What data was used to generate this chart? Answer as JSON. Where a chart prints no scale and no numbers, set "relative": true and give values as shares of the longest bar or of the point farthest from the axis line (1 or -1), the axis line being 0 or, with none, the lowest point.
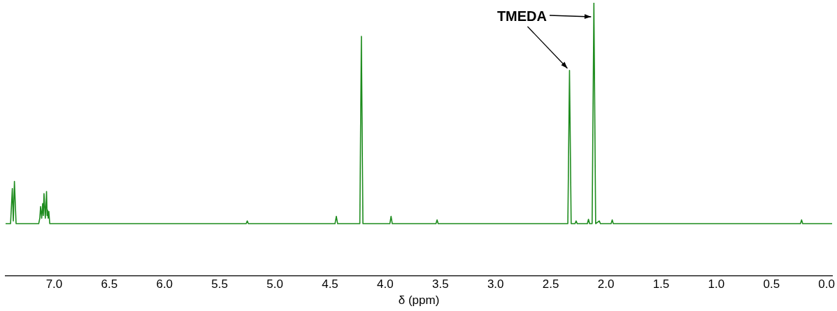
{
  "chart_data": {
    "type": "line",
    "relative": true,
    "xlabel": "δ (ppm)",
    "x": [
      7.44,
      7.395,
      7.379,
      7.37,
      7.36,
      7.345,
      7.14,
      7.13,
      7.123,
      7.113,
      7.104,
      7.098,
      7.092,
      7.08,
      7.069,
      7.064,
      7.06,
      7.054,
      7.048,
      7.04,
      5.26,
      5.25,
      5.24,
      4.455,
      4.443,
      4.431,
      4.23,
      4.216,
      4.202,
      3.958,
      3.947,
      3.936,
      3.54,
      3.53,
      3.52,
      2.345,
      2.33,
      2.315,
      2.28,
      2.27,
      2.26,
      2.168,
      2.158,
      2.148,
      2.125,
      2.109,
      2.093,
      2.06,
      2.05,
      1.953,
      1.943,
      1.933,
      0.237,
      0.227,
      0.217,
      -0.05
    ],
    "series": [
      {
        "color": "#1e8c1e",
        "values": [
          0.19,
          0.19,
          0.319,
          0.2,
          0.345,
          0.19,
          0.19,
          0.21,
          0.253,
          0.21,
          0.264,
          0.22,
          0.3,
          0.21,
          0.308,
          0.22,
          0.24,
          0.21,
          0.235,
          0.19,
          0.19,
          0.2,
          0.19,
          0.19,
          0.217,
          0.19,
          0.19,
          0.877,
          0.19,
          0.19,
          0.217,
          0.19,
          0.19,
          0.204,
          0.19,
          0.19,
          0.752,
          0.19,
          0.19,
          0.2,
          0.19,
          0.19,
          0.206,
          0.19,
          0.19,
          1,
          0.19,
          0.2,
          0.19,
          0.19,
          0.204,
          0.19,
          0.19,
          0.204,
          0.19,
          0.19
        ]
      }
    ],
    "xlim": [
      7.44,
      -0.05
    ],
    "xticks": [
      {
        "value": 7,
        "label": "7.0"
      },
      {
        "value": 6.5,
        "label": "6.5"
      },
      {
        "value": 6,
        "label": "6.0"
      },
      {
        "value": 5.5,
        "label": "5.5"
      },
      {
        "value": 5,
        "label": "5.0"
      },
      {
        "value": 4.5,
        "label": "4.5"
      },
      {
        "value": 4,
        "label": "4.0"
      },
      {
        "value": 3.5,
        "label": "3.5"
      },
      {
        "value": 3,
        "label": "3.0"
      },
      {
        "value": 2.5,
        "label": "2.5"
      },
      {
        "value": 2,
        "label": "2.0"
      },
      {
        "value": 1.5,
        "label": "1.5"
      },
      {
        "value": 1,
        "label": "1.0"
      },
      {
        "value": 0.5,
        "label": "0.5"
      },
      {
        "value": 0,
        "label": "0.0"
      }
    ],
    "annotations": [
      {
        "text": "TMEDA",
        "x": 2.33,
        "y": 0.752
      }
    ],
    "grid": false,
    "legend": false,
    "marker": "none",
    "line_style": "solid"
  }
}
